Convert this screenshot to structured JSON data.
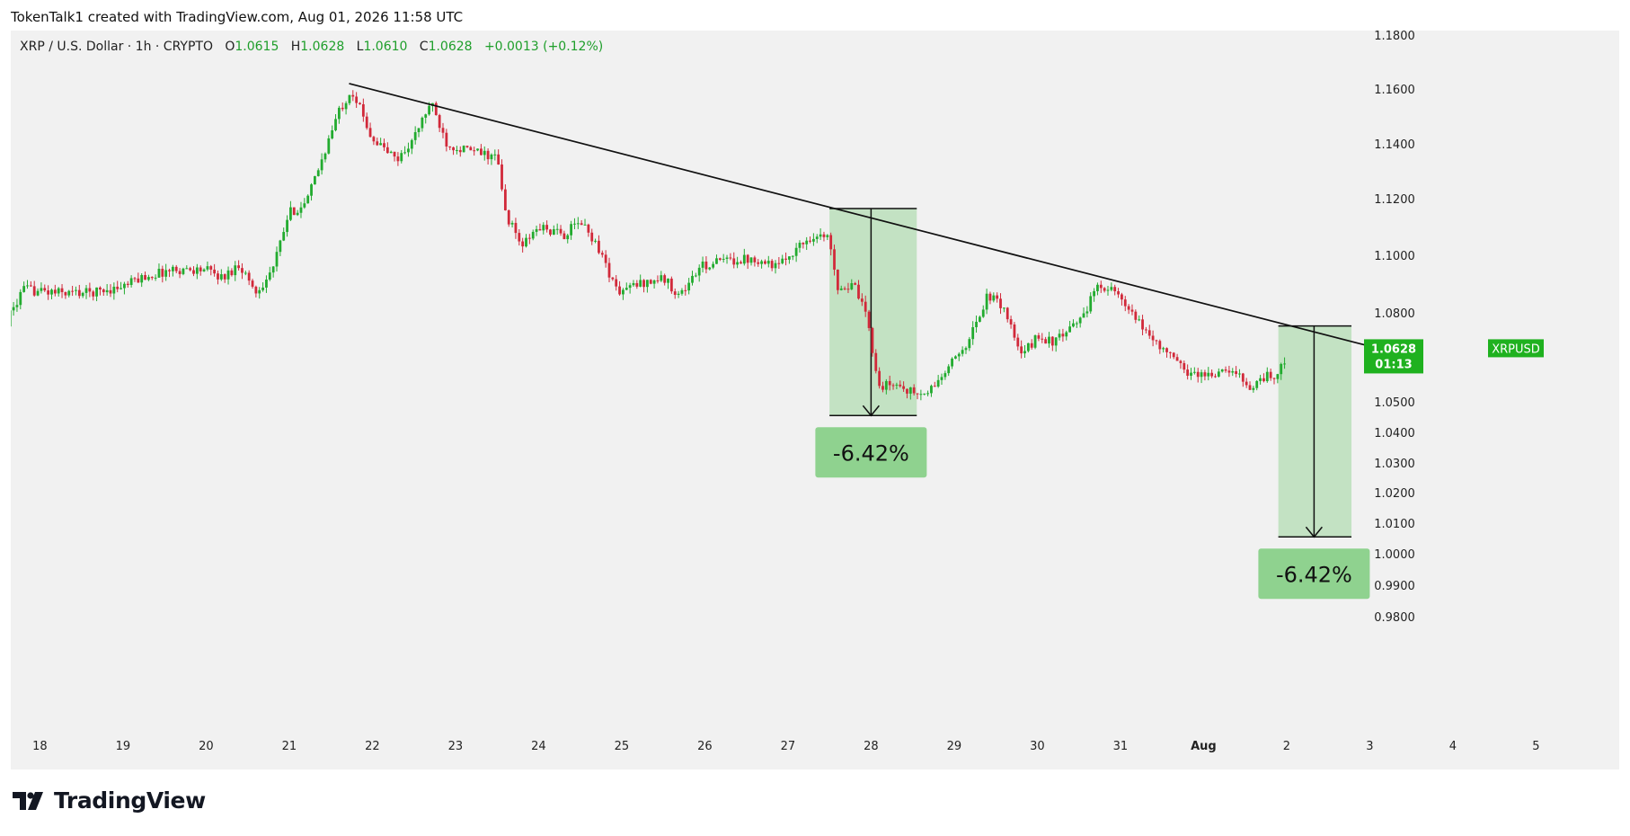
{
  "attribution": "TokenTalk1 created with TradingView.com, Aug 01, 2026 11:58 UTC",
  "legend": {
    "symbol": "XRP / U.S. Dollar · 1h · CRYPTO",
    "o_label": "O",
    "o": "1.0615",
    "h_label": "H",
    "h": "1.0628",
    "l_label": "L",
    "l": "1.0610",
    "c_label": "C",
    "c": "1.0628",
    "change": "+0.0013 (+0.12%)"
  },
  "brand": "TradingView",
  "colors": {
    "up": "#22ab2f",
    "down": "#d1293a",
    "background": "#f1f1f1",
    "measure_fill": "#a5d9a5",
    "label_fill": "#8fd28f",
    "price_tag": "#1fb11f"
  },
  "price_tag": {
    "symbol": "XRPUSD",
    "price": "1.0628",
    "countdown": "01:13"
  },
  "chart_data": {
    "type": "candlestick",
    "title": "",
    "interval": "1h",
    "x_axis": {
      "labels": [
        "18",
        "19",
        "20",
        "21",
        "22",
        "23",
        "24",
        "25",
        "26",
        "27",
        "28",
        "29",
        "30",
        "31",
        "Aug",
        "2",
        "3",
        "4",
        "5"
      ],
      "range_days": [
        17.65,
        5.65
      ]
    },
    "y_axis": {
      "ticks": [
        "1.1800",
        "1.1600",
        "1.1400",
        "1.1200",
        "1.1000",
        "1.0800",
        "1.0500",
        "1.0400",
        "1.0300",
        "1.0200",
        "1.0100",
        "1.0000",
        "0.9900",
        "0.9800"
      ],
      "scale": "log",
      "ylim": [
        0.975,
        1.183
      ],
      "side": "right"
    },
    "price_path": [
      [
        "17.6",
        1.077
      ],
      [
        "17.8",
        1.088
      ],
      [
        "18.2",
        1.087
      ],
      [
        "18.6",
        1.087
      ],
      [
        "19.0",
        1.089
      ],
      [
        "19.2",
        1.092
      ],
      [
        "19.6",
        1.095
      ],
      [
        "20.0",
        1.095
      ],
      [
        "20.2",
        1.092
      ],
      [
        "20.4",
        1.097
      ],
      [
        "20.6",
        1.087
      ],
      [
        "20.8",
        1.095
      ],
      [
        "21.0",
        1.115
      ],
      [
        "21.2",
        1.118
      ],
      [
        "21.4",
        1.135
      ],
      [
        "21.6",
        1.152
      ],
      [
        "21.75",
        1.16
      ],
      [
        "22.0",
        1.142
      ],
      [
        "22.3",
        1.134
      ],
      [
        "22.5",
        1.142
      ],
      [
        "22.7",
        1.155
      ],
      [
        "22.9",
        1.14
      ],
      [
        "23.1",
        1.138
      ],
      [
        "23.5",
        1.135
      ],
      [
        "23.6",
        1.115
      ],
      [
        "23.8",
        1.103
      ],
      [
        "24.0",
        1.11
      ],
      [
        "24.3",
        1.107
      ],
      [
        "24.5",
        1.112
      ],
      [
        "24.7",
        1.104
      ],
      [
        "24.95",
        1.087
      ],
      [
        "25.2",
        1.09
      ],
      [
        "25.5",
        1.092
      ],
      [
        "25.7",
        1.086
      ],
      [
        "25.95",
        1.096
      ],
      [
        "26.2",
        1.098
      ],
      [
        "26.6",
        1.099
      ],
      [
        "26.9",
        1.096
      ],
      [
        "27.0",
        1.1
      ],
      [
        "27.3",
        1.107
      ],
      [
        "27.5",
        1.106
      ],
      [
        "27.6",
        1.089
      ],
      [
        "27.8",
        1.089
      ],
      [
        "27.95",
        1.078
      ],
      [
        "28.1",
        1.055
      ],
      [
        "28.3",
        1.056
      ],
      [
        "28.5",
        1.053
      ],
      [
        "28.65",
        1.052
      ],
      [
        "28.9",
        1.06
      ],
      [
        "29.2",
        1.072
      ],
      [
        "29.4",
        1.086
      ],
      [
        "29.6",
        1.082
      ],
      [
        "29.8",
        1.065
      ],
      [
        "30.0",
        1.072
      ],
      [
        "30.2",
        1.07
      ],
      [
        "30.4",
        1.074
      ],
      [
        "30.6",
        1.082
      ],
      [
        "30.75",
        1.09
      ],
      [
        "30.9",
        1.088
      ],
      [
        "31.2",
        1.077
      ],
      [
        "31.5",
        1.068
      ],
      [
        "31.8",
        1.06
      ],
      [
        "32.0",
        1.059
      ],
      [
        "32.3",
        1.06
      ],
      [
        "32.5",
        1.058
      ],
      [
        "32.55",
        1.054
      ],
      [
        "32.75",
        1.059
      ],
      [
        "32.85",
        1.057
      ],
      [
        "32.95",
        1.064
      ],
      [
        "33.0",
        1.0628
      ]
    ],
    "trendline": {
      "label": "",
      "points": [
        [
          "21.72",
          1.162
        ],
        [
          "33.95",
          1.069
        ]
      ]
    },
    "measures": [
      {
        "label": "-6.42%",
        "from_day": 27.5,
        "to_day": 28.55,
        "top": 1.1165,
        "bottom": 1.0455,
        "arrow_day": 28.0
      },
      {
        "label": "-6.42%",
        "from_day": 32.9,
        "to_day": 33.78,
        "top": 1.0755,
        "bottom": 1.0055,
        "arrow_day": 33.33
      }
    ],
    "last_price": 1.0628
  }
}
